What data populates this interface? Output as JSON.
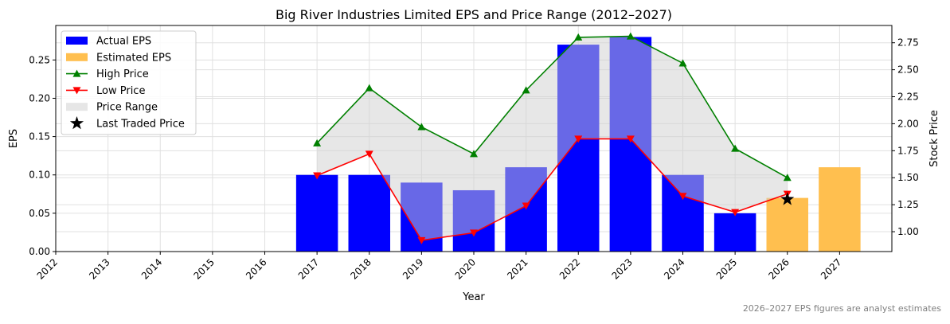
{
  "chart_data": {
    "type": "bar",
    "title": "Big River Industries Limited EPS and Price Range (2012–2027)",
    "xlabel": "Year",
    "ylabel": "EPS",
    "y2label": "Stock Price",
    "categories": [
      "2012",
      "2013",
      "2014",
      "2015",
      "2016",
      "2017",
      "2018",
      "2019",
      "2020",
      "2021",
      "2022",
      "2023",
      "2024",
      "2025",
      "2026",
      "2027"
    ],
    "xlim": [
      2012,
      2028
    ],
    "ylim": [
      0,
      0.295
    ],
    "y2lim": [
      0.816,
      2.91
    ],
    "yticks": [
      "0.00",
      "0.05",
      "0.10",
      "0.15",
      "0.20",
      "0.25"
    ],
    "y2ticks": [
      "1.00",
      "1.25",
      "1.50",
      "1.75",
      "2.00",
      "2.25",
      "2.50",
      "2.75"
    ],
    "grid": true,
    "legend_position": "top-left",
    "series": [
      {
        "name": "Actual EPS",
        "type": "bar",
        "color": "#0000ff",
        "x": [
          2017,
          2018,
          2019,
          2020,
          2021,
          2022,
          2023,
          2024,
          2025
        ],
        "values": [
          0.1,
          0.1,
          0.09,
          0.08,
          0.11,
          0.27,
          0.28,
          0.1,
          0.05
        ]
      },
      {
        "name": "Estimated EPS",
        "type": "bar",
        "color": "#ffbf4f",
        "x": [
          2026,
          2027
        ],
        "values": [
          0.07,
          0.11
        ]
      },
      {
        "name": "High Price",
        "type": "line",
        "marker": "triangle-up",
        "color": "#008000",
        "axis": "right",
        "x": [
          2017,
          2018,
          2019,
          2020,
          2021,
          2022,
          2023,
          2024,
          2025,
          2026
        ],
        "values": [
          1.82,
          2.33,
          1.97,
          1.72,
          2.31,
          2.8,
          2.81,
          2.56,
          1.77,
          1.5
        ]
      },
      {
        "name": "Low Price",
        "type": "line",
        "marker": "triangle-down",
        "color": "#ff0000",
        "axis": "right",
        "x": [
          2017,
          2018,
          2019,
          2020,
          2021,
          2022,
          2023,
          2024,
          2025,
          2026
        ],
        "values": [
          1.52,
          1.72,
          0.92,
          0.99,
          1.24,
          1.86,
          1.86,
          1.33,
          1.18,
          1.35
        ]
      },
      {
        "name": "Price Range",
        "type": "area",
        "color": "#d3d3d3"
      },
      {
        "name": "Last Traded Price",
        "type": "scatter",
        "marker": "star",
        "color": "#000000",
        "axis": "right",
        "x": [
          2026
        ],
        "values": [
          1.3
        ]
      }
    ],
    "footnote": "2026–2027 EPS figures are analyst estimates"
  }
}
